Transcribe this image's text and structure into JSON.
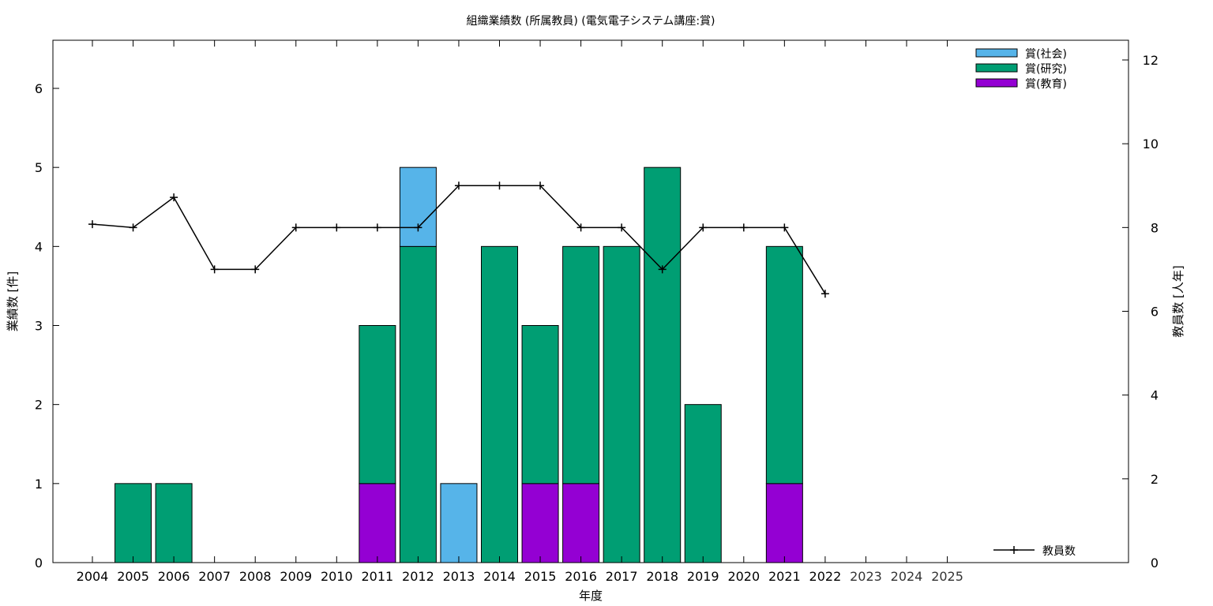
{
  "chart_data": {
    "type": "bar",
    "title": "組織業績数 (所属教員) (電気電子システム講座:賞)",
    "xlabel": "年度",
    "ylabel": "業績数 [件]",
    "y2label": "教員数 [人年]",
    "categories": [
      "2004",
      "2005",
      "2006",
      "2007",
      "2008",
      "2009",
      "2010",
      "2011",
      "2012",
      "2013",
      "2014",
      "2015",
      "2016",
      "2017",
      "2018",
      "2019",
      "2020",
      "2021",
      "2022",
      "2023",
      "2024",
      "2025"
    ],
    "dim_categories": [
      "2023",
      "2024",
      "2025"
    ],
    "stacked": true,
    "ylim": [
      0,
      6.6
    ],
    "y_ticks": [
      0,
      1,
      2,
      3,
      4,
      5,
      6
    ],
    "y2lim": [
      0,
      12.45
    ],
    "y2_ticks": [
      0,
      2,
      4,
      6,
      8,
      10,
      12
    ],
    "grid": false,
    "legend_position": "top-right",
    "series": [
      {
        "name": "賞(教育)",
        "color": "#9400d3",
        "values": [
          0,
          0,
          0,
          0,
          0,
          0,
          0,
          1,
          0,
          0,
          0,
          1,
          1,
          0,
          0,
          0,
          0,
          1,
          0,
          0,
          0,
          0
        ]
      },
      {
        "name": "賞(研究)",
        "color": "#009e73",
        "values": [
          0,
          1,
          1,
          0,
          0,
          0,
          0,
          2,
          4,
          0,
          4,
          2,
          3,
          4,
          5,
          2,
          0,
          3,
          0,
          0,
          0,
          0
        ]
      },
      {
        "name": "賞(社会)",
        "color": "#56b4e9",
        "values": [
          0,
          0,
          0,
          0,
          0,
          0,
          0,
          0,
          1,
          1,
          0,
          0,
          0,
          0,
          0,
          0,
          0,
          0,
          0,
          0,
          0,
          0
        ]
      }
    ],
    "line_series": {
      "name": "教員数",
      "axis": "right",
      "color": "#000000",
      "values": [
        8.08,
        8.0,
        8.72,
        7.0,
        7.0,
        8.0,
        8.0,
        8.0,
        8.0,
        9.0,
        9.0,
        9.0,
        8.0,
        8.0,
        7.0,
        8.0,
        8.0,
        8.0,
        6.42
      ]
    }
  }
}
